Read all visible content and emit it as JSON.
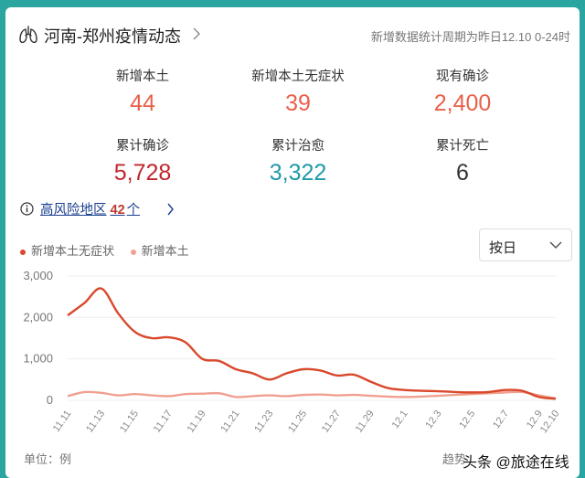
{
  "header": {
    "title": "河南-郑州疫情动态",
    "period": "新增数据统计周期为昨日12.10 0-24时"
  },
  "stats": [
    {
      "label": "新增本土",
      "value": "44",
      "color": "#e8604a"
    },
    {
      "label": "新增本土无症状",
      "value": "39",
      "color": "#e8604a"
    },
    {
      "label": "现有确诊",
      "value": "2,400",
      "color": "#e8604a"
    },
    {
      "label": "累计确诊",
      "value": "5,728",
      "color": "#c0262d"
    },
    {
      "label": "累计治愈",
      "value": "3,322",
      "color": "#1f9aa8"
    },
    {
      "label": "累计死亡",
      "value": "6",
      "color": "#333333"
    }
  ],
  "risk": {
    "label": "高风险地区",
    "count": "42",
    "unit": "个"
  },
  "select": {
    "value": "按日"
  },
  "footer": {
    "unit": "单位：例",
    "trend": "趋势",
    "watermark": "头条 @旅途在线"
  },
  "chart_data": {
    "type": "line",
    "ylim": [
      0,
      3000
    ],
    "yticks": [
      "0",
      "1,000",
      "2,000",
      "3,000"
    ],
    "xtick_labels": [
      "11.11",
      "11.13",
      "11.15",
      "11.17",
      "11.19",
      "11.21",
      "11.23",
      "11.25",
      "11.27",
      "11.29",
      "12.1",
      "12.3",
      "12.5",
      "12.7",
      "12.9",
      "12.10"
    ],
    "x": [
      "11.11",
      "11.12",
      "11.13",
      "11.14",
      "11.15",
      "11.16",
      "11.17",
      "11.18",
      "11.19",
      "11.20",
      "11.21",
      "11.22",
      "11.23",
      "11.24",
      "11.25",
      "11.26",
      "11.27",
      "11.28",
      "11.29",
      "11.30",
      "12.1",
      "12.2",
      "12.3",
      "12.4",
      "12.5",
      "12.6",
      "12.7",
      "12.8",
      "12.9",
      "12.10"
    ],
    "legend": "top-left",
    "series": [
      {
        "name": "新增本土无症状",
        "color": "#d9482b",
        "values": [
          2050,
          2350,
          2700,
          2100,
          1650,
          1500,
          1520,
          1400,
          1000,
          950,
          750,
          650,
          500,
          650,
          750,
          720,
          600,
          620,
          450,
          300,
          250,
          230,
          220,
          200,
          190,
          200,
          250,
          230,
          80,
          39
        ]
      },
      {
        "name": "新增本土",
        "color": "#f0a090",
        "values": [
          100,
          200,
          180,
          120,
          150,
          120,
          100,
          150,
          160,
          170,
          80,
          100,
          120,
          100,
          130,
          140,
          120,
          130,
          110,
          90,
          80,
          90,
          110,
          130,
          150,
          170,
          190,
          200,
          120,
          44
        ]
      }
    ]
  }
}
